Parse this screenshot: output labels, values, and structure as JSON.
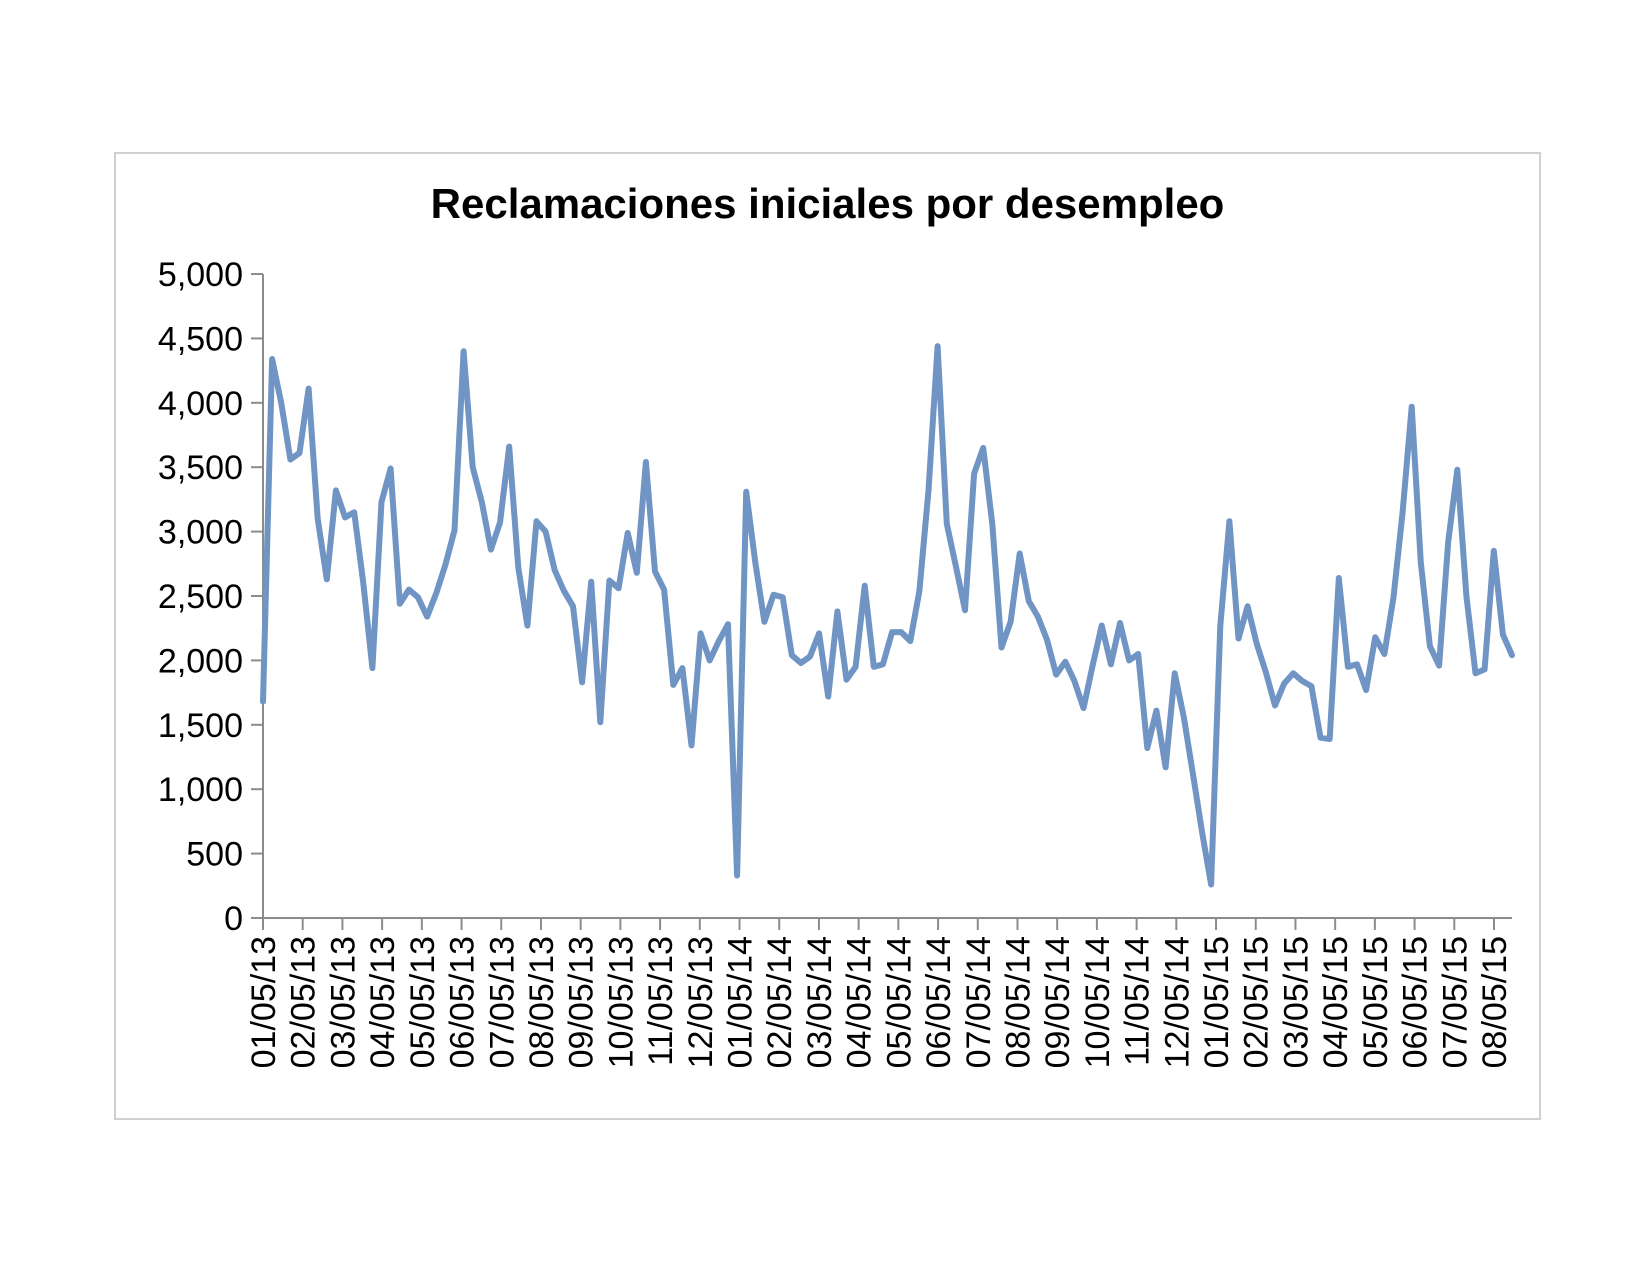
{
  "chart_data": {
    "type": "line",
    "title": "Reclamaciones iniciales por desempleo",
    "xlabel": "",
    "ylabel": "",
    "ylim": [
      0,
      5000
    ],
    "y_ticks": [
      "0",
      "500",
      "1,000",
      "1,500",
      "2,000",
      "2,500",
      "3,000",
      "3,500",
      "4,000",
      "4,500",
      "5,000"
    ],
    "x_tick_labels": [
      "01/05/13",
      "02/05/13",
      "03/05/13",
      "04/05/13",
      "05/05/13",
      "06/05/13",
      "07/05/13",
      "08/05/13",
      "09/05/13",
      "10/05/13",
      "11/05/13",
      "12/05/13",
      "01/05/14",
      "02/05/14",
      "03/05/14",
      "04/05/14",
      "05/05/14",
      "06/05/14",
      "07/05/14",
      "08/05/14",
      "09/05/14",
      "10/05/14",
      "11/05/14",
      "12/05/14",
      "01/05/15",
      "02/05/15",
      "03/05/15",
      "04/05/15",
      "05/05/15",
      "06/05/15",
      "07/05/15",
      "08/05/15"
    ],
    "grid": false,
    "legend": "none",
    "series_color": "#7094c4",
    "series": [
      {
        "values": [
          1680,
          4340,
          4000,
          3560,
          3610,
          4110,
          3100,
          2630,
          3320,
          3110,
          3150,
          2600,
          1940,
          3230,
          3490,
          2440,
          2550,
          2490,
          2340,
          2520,
          2740,
          3010,
          4400,
          3500,
          3230,
          2860,
          3070,
          3660,
          2720,
          2270,
          3080,
          3000,
          2700,
          2540,
          2420,
          1830,
          2610,
          1520,
          2620,
          2560,
          2990,
          2680,
          3540,
          2690,
          2550,
          1810,
          1940,
          1340,
          2210,
          2000,
          2150,
          2280,
          330,
          3310,
          2760,
          2300,
          2510,
          2490,
          2040,
          1980,
          2030,
          2210,
          1720,
          2380,
          1850,
          1950,
          2580,
          1950,
          1970,
          2220,
          2220,
          2150,
          2540,
          3320,
          4440,
          3060,
          2730,
          2390,
          3450,
          3650,
          3060,
          2100,
          2300,
          2830,
          2460,
          2340,
          2160,
          1890,
          1990,
          1840,
          1630,
          1960,
          2270,
          1970,
          2290,
          2000,
          2050,
          1320,
          1610,
          1170,
          1900,
          1560,
          1120,
          670,
          260,
          2270,
          3080,
          2170,
          2420,
          2130,
          1910,
          1650,
          1820,
          1900,
          1840,
          1800,
          1400,
          1390,
          2640,
          1950,
          1970,
          1770,
          2180,
          2050,
          2490,
          3150,
          3970,
          2760,
          2110,
          1960,
          2920,
          3480,
          2500,
          1900,
          1930,
          2850,
          2200,
          2040
        ]
      }
    ]
  }
}
